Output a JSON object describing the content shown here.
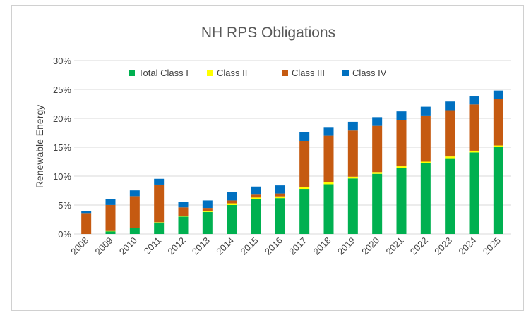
{
  "chart_data": {
    "type": "bar",
    "stacked": true,
    "title": "NH  RPS Obligations",
    "xlabel": "",
    "ylabel": "Renewable Energy",
    "ylim": [
      0,
      0.3
    ],
    "yticks": [
      0,
      0.05,
      0.1,
      0.15,
      0.2,
      0.25,
      0.3
    ],
    "ytick_labels": [
      "0%",
      "5%",
      "10%",
      "15%",
      "20%",
      "25%",
      "30%"
    ],
    "grid": "horizontal",
    "legend": "top",
    "categories": [
      "2008",
      "2009",
      "2010",
      "2011",
      "2012",
      "2013",
      "2014",
      "2015",
      "2016",
      "2017",
      "2018",
      "2019",
      "2020",
      "2021",
      "2022",
      "2023",
      "2024",
      "2025"
    ],
    "series": [
      {
        "name": "Total Class I",
        "color": "#00b050",
        "values": [
          0.0,
          0.005,
          0.01,
          0.02,
          0.03,
          0.038,
          0.05,
          0.06,
          0.062,
          0.078,
          0.086,
          0.096,
          0.104,
          0.114,
          0.122,
          0.131,
          0.141,
          0.15
        ]
      },
      {
        "name": "Class II",
        "color": "#ffff00",
        "values": [
          0.0,
          0.0001,
          0.0004,
          0.0004,
          0.001,
          0.002,
          0.003,
          0.003,
          0.003,
          0.003,
          0.003,
          0.003,
          0.003,
          0.003,
          0.003,
          0.003,
          0.003,
          0.003
        ]
      },
      {
        "name": "Class III",
        "color": "#c55a11",
        "values": [
          0.035,
          0.045,
          0.055,
          0.065,
          0.015,
          0.005,
          0.005,
          0.005,
          0.005,
          0.08,
          0.081,
          0.08,
          0.08,
          0.08,
          0.08,
          0.08,
          0.08,
          0.08
        ]
      },
      {
        "name": "Class IV",
        "color": "#0070c0",
        "values": [
          0.005,
          0.01,
          0.01,
          0.01,
          0.01,
          0.013,
          0.014,
          0.014,
          0.014,
          0.015,
          0.015,
          0.015,
          0.015,
          0.015,
          0.015,
          0.015,
          0.015,
          0.015
        ]
      }
    ]
  }
}
